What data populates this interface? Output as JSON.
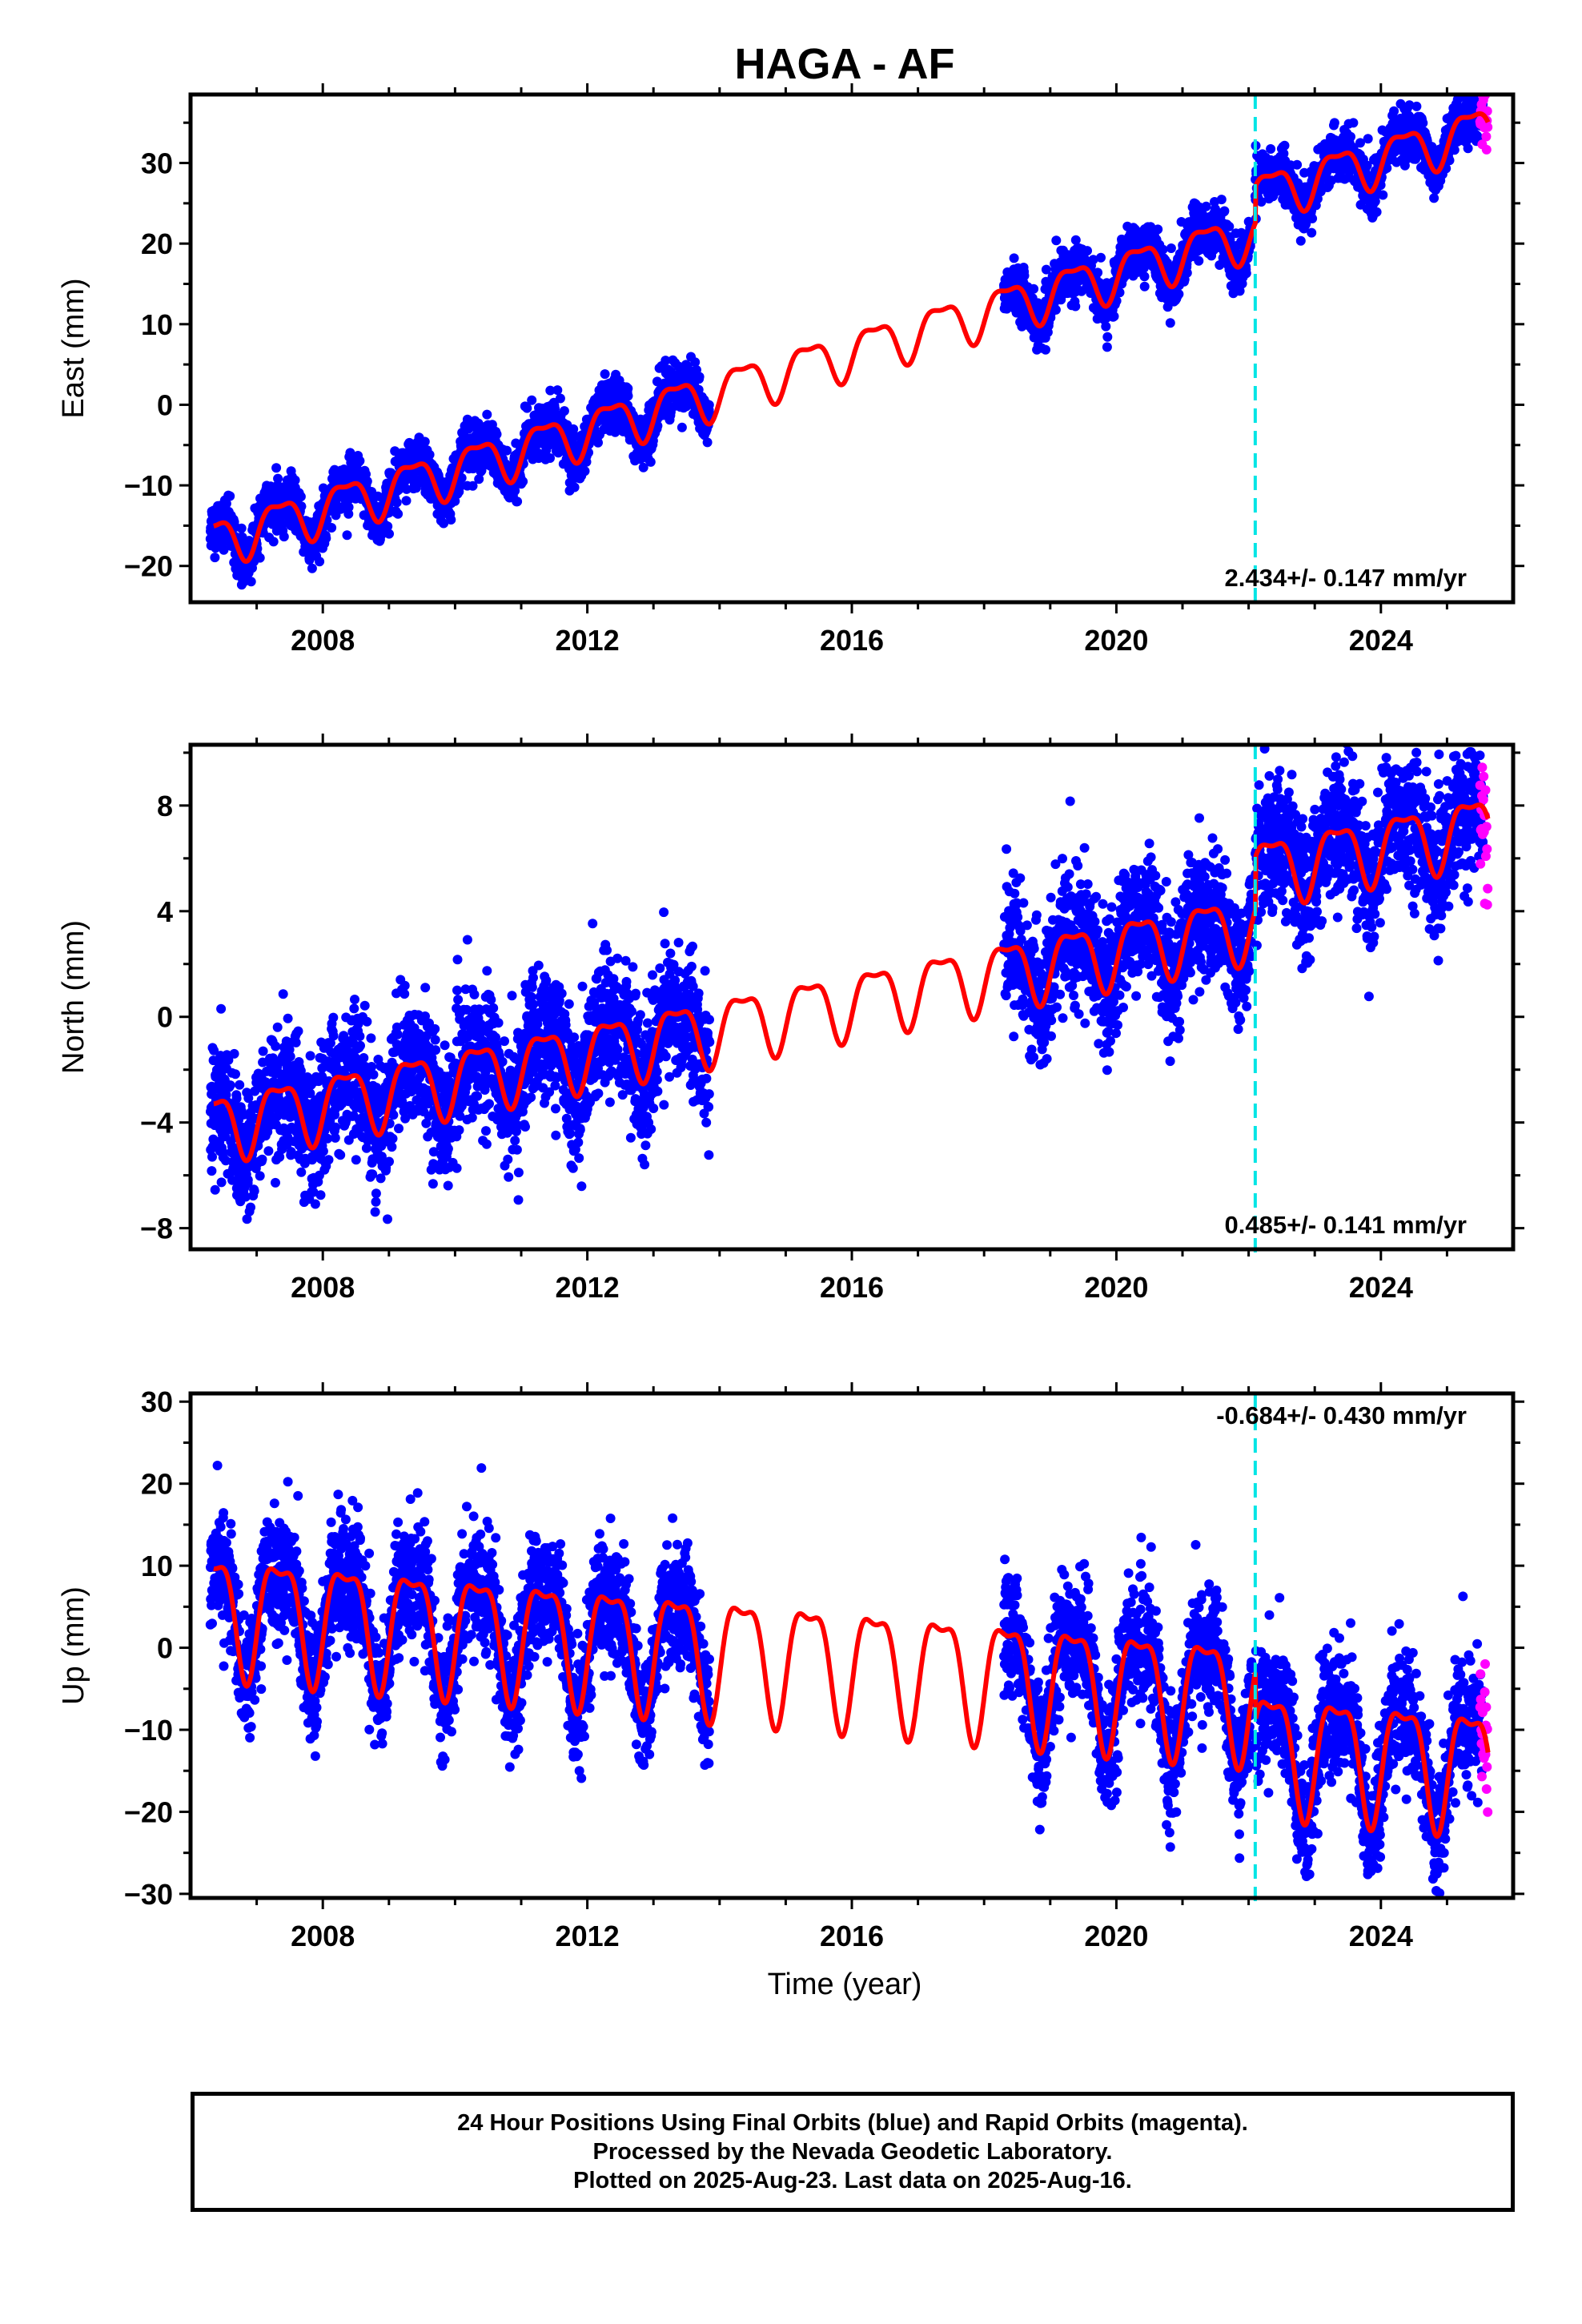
{
  "title": "HAGA - AF",
  "xlabel": "Time (year)",
  "footer": {
    "line1": "24 Hour Positions Using Final Orbits (blue) and Rapid Orbits (magenta).",
    "line2": "Processed by the Nevada Geodetic Laboratory.",
    "line3": "Plotted on 2025-Aug-23. Last data on 2025-Aug-16."
  },
  "colors": {
    "final_orbits": "#0000ff",
    "rapid_orbits": "#ff00ff",
    "model": "#ff0000",
    "equipment_change": "#00e5e5"
  },
  "chart_data": [
    {
      "type": "scatter",
      "component": "East",
      "ylabel": "East (mm)",
      "xlim": [
        2006.0,
        2026.0
      ],
      "ylim": [
        -24.5,
        38.5
      ],
      "xticks": [
        2008,
        2012,
        2016,
        2020,
        2024
      ],
      "yticks": [
        -20,
        -10,
        0,
        10,
        20,
        30
      ],
      "rate_label": "2.434+/- 0.147 mm/yr",
      "equipment_change_year": 2022.1,
      "model": {
        "intercept_2006_5": -16.5,
        "velocity": 2.434,
        "seasonal_amplitude": 2.8,
        "scatter": 1.5,
        "offsets": [
          {
            "year": 2022.1,
            "size": 4.5
          }
        ]
      },
      "data_periods": [
        [
          2006.3,
          2013.85
        ],
        [
          2018.3,
          2022.05
        ],
        [
          2022.1,
          2025.55
        ]
      ],
      "rapid_period": [
        2025.5,
        2025.62
      ]
    },
    {
      "type": "scatter",
      "component": "North",
      "ylabel": "North (mm)",
      "xlim": [
        2006.0,
        2026.0
      ],
      "ylim": [
        -8.8,
        10.3
      ],
      "xticks": [
        2008,
        2012,
        2016,
        2020,
        2024
      ],
      "yticks": [
        -8,
        -4,
        0,
        4,
        8
      ],
      "rate_label": "0.485+/- 0.141 mm/yr",
      "equipment_change_year": 2022.1,
      "model": {
        "intercept_2006_5": -4.0,
        "velocity": 0.485,
        "seasonal_amplitude": 1.2,
        "scatter": 1.2,
        "offsets": [
          {
            "year": 2022.1,
            "size": 2.0
          }
        ]
      },
      "data_periods": [
        [
          2006.3,
          2013.85
        ],
        [
          2018.3,
          2022.05
        ],
        [
          2022.1,
          2025.55
        ]
      ],
      "rapid_period": [
        2025.5,
        2025.62
      ]
    },
    {
      "type": "scatter",
      "component": "Up",
      "ylabel": "Up (mm)",
      "xlim": [
        2006.0,
        2026.0
      ],
      "ylim": [
        -30.5,
        31.0
      ],
      "xticks": [
        2008,
        2012,
        2016,
        2020,
        2024
      ],
      "yticks": [
        -30,
        -20,
        -10,
        0,
        10,
        20,
        30
      ],
      "rate_label": "-0.684+/- 0.430 mm/yr",
      "equipment_change_year": 2022.1,
      "model": {
        "intercept_2006_5": 5.0,
        "velocity": -0.684,
        "seasonal_amplitude": 7.0,
        "scatter": 3.5,
        "offsets": [
          {
            "year": 2022.1,
            "size": -6.0
          }
        ]
      },
      "data_periods": [
        [
          2006.3,
          2013.85
        ],
        [
          2018.3,
          2022.05
        ],
        [
          2022.1,
          2025.55
        ]
      ],
      "rapid_period": [
        2025.5,
        2025.62
      ]
    }
  ]
}
